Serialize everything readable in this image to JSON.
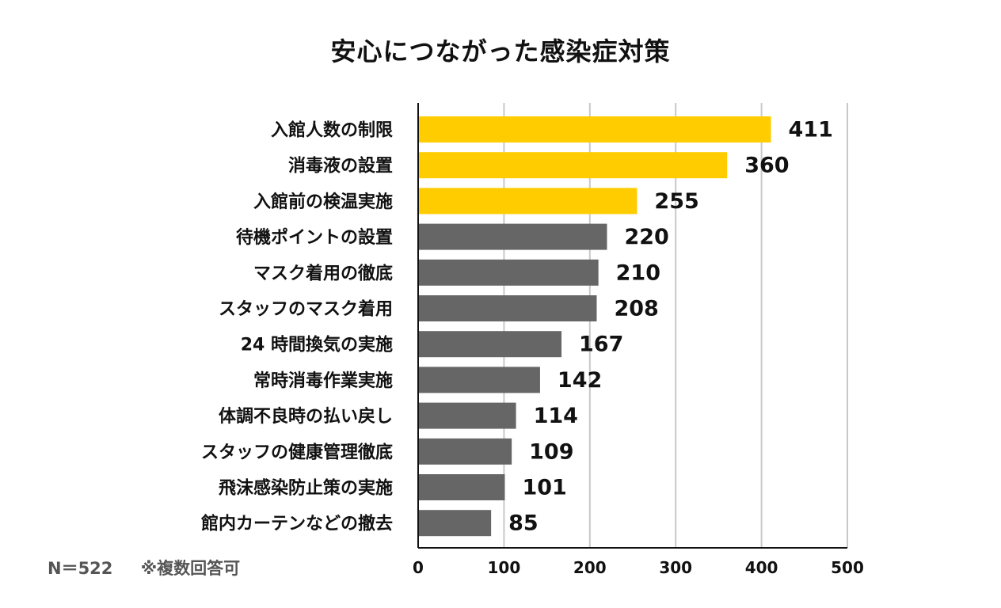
{
  "chart_data": {
    "type": "bar",
    "orientation": "horizontal",
    "title": "安心につながった感染症対策",
    "categories": [
      "入館人数の制限",
      "消毒液の設置",
      "入館前の検温実施",
      "待機ポイントの設置",
      "マスク着用の徹底",
      "スタッフのマスク着用",
      "24 時間換気の実施",
      "常時消毒作業実施",
      "体調不良時の払い戻し",
      "スタッフの健康管理徹底",
      "飛沫感染防止策の実施",
      "館内カーテンなどの撤去"
    ],
    "values": [
      411,
      360,
      255,
      220,
      210,
      208,
      167,
      142,
      114,
      109,
      101,
      85
    ],
    "highlight_count": 3,
    "xlim": [
      0,
      500
    ],
    "xticks": [
      0,
      100,
      200,
      300,
      400,
      500
    ],
    "grid": true,
    "data_labels": true
  },
  "colors": {
    "highlight": "#FFCC00",
    "default": "#666666",
    "grid": "#C8C8C8",
    "axis": "#111111"
  },
  "footnote": {
    "n_label": "N＝522",
    "note": "※複数回答可"
  }
}
